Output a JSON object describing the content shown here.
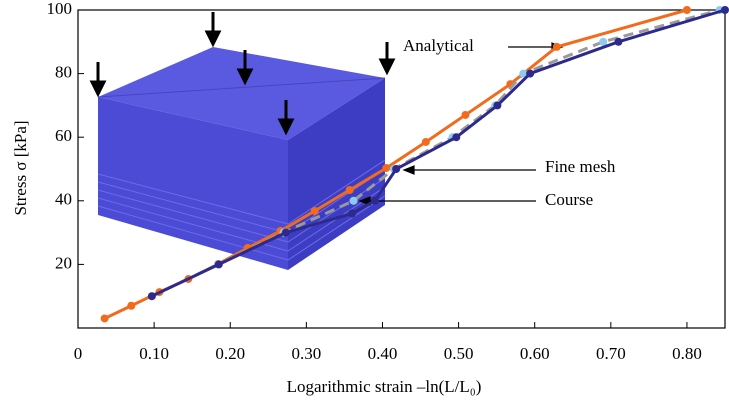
{
  "chart_data": {
    "type": "line",
    "x_label": "Logarithmic strain –ln(L/L₀)",
    "y_label": "Stress σ  [kPa]",
    "xlim": [
      0,
      0.85
    ],
    "ylim": [
      0,
      100
    ],
    "xticks": [
      {
        "value": 0,
        "label": "0"
      },
      {
        "value": 0.1,
        "label": "0.10"
      },
      {
        "value": 0.2,
        "label": "0.20"
      },
      {
        "value": 0.3,
        "label": "0.30"
      },
      {
        "value": 0.4,
        "label": "0.40"
      },
      {
        "value": 0.5,
        "label": "0.50"
      },
      {
        "value": 0.6,
        "label": "0.60"
      },
      {
        "value": 0.7,
        "label": "0.70"
      },
      {
        "value": 0.8,
        "label": "0.80"
      }
    ],
    "yticks": [
      20,
      40,
      60,
      80,
      100
    ],
    "series": [
      {
        "name": "Analytical",
        "color": "#f26b1d",
        "marker_color": "#f26b1d",
        "dashed": false,
        "x": [
          0.035,
          0.07,
          0.107,
          0.145,
          0.184,
          0.223,
          0.266,
          0.311,
          0.357,
          0.405,
          0.457,
          0.509,
          0.568,
          0.629,
          0.8
        ],
        "values": [
          3,
          7,
          11.3,
          15.4,
          20.1,
          25.2,
          30.5,
          36.8,
          43.4,
          50.3,
          58.5,
          67,
          76.7,
          88.4,
          100
        ]
      },
      {
        "name": "Course",
        "color": "#9a9a9a",
        "marker_color": "#8ecbf0",
        "dashed": true,
        "x": [
          0.097,
          0.184,
          0.27,
          0.362,
          0.415,
          0.492,
          0.548,
          0.585,
          0.69,
          0.843
        ],
        "values": [
          10,
          20,
          30,
          40,
          50,
          60,
          70,
          80,
          90,
          100
        ]
      },
      {
        "name": "Fine mesh",
        "color": "#2e2a8c",
        "marker_color": "#2e2a8c",
        "dashed": false,
        "x": [
          0.097,
          0.185,
          0.273,
          0.36,
          0.39,
          0.418,
          0.497,
          0.551,
          0.594,
          0.71,
          0.85
        ],
        "values": [
          10,
          20,
          30,
          36,
          40,
          50,
          60,
          70,
          80,
          90,
          100
        ]
      }
    ]
  }
}
